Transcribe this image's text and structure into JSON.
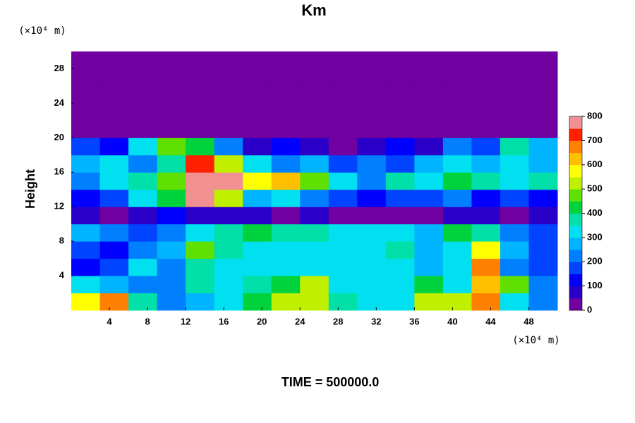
{
  "chart_data": {
    "type": "heatmap",
    "title": "Km",
    "xlabel_unit": "(×10⁴ m)",
    "ylabel_unit": "(×10⁴ m)",
    "ylabel": "Height",
    "footer": "TIME = 500000.0",
    "xlim": [
      0,
      51
    ],
    "ylim": [
      0,
      30
    ],
    "xticks": [
      4,
      8,
      12,
      16,
      20,
      24,
      28,
      32,
      36,
      40,
      44,
      48
    ],
    "yticks": [
      4,
      8,
      12,
      16,
      20,
      24,
      28
    ],
    "xbins": [
      0,
      3,
      6,
      9,
      12,
      15,
      18,
      21,
      24,
      27,
      30,
      33,
      36,
      39,
      42,
      45,
      48,
      51
    ],
    "ybins": [
      0,
      2,
      4,
      6,
      8,
      10,
      12,
      14,
      16,
      18,
      20,
      22,
      24,
      26,
      28,
      30
    ],
    "z": [
      [
        550,
        650,
        350,
        200,
        250,
        300,
        400,
        500,
        500,
        350,
        300,
        300,
        500,
        500,
        650,
        300,
        200
      ],
      [
        300,
        250,
        200,
        200,
        350,
        300,
        350,
        400,
        500,
        300,
        300,
        300,
        400,
        300,
        600,
        450,
        200
      ],
      [
        100,
        150,
        300,
        200,
        350,
        300,
        300,
        300,
        300,
        300,
        300,
        300,
        250,
        300,
        650,
        200,
        150
      ],
      [
        150,
        100,
        200,
        250,
        450,
        350,
        300,
        300,
        300,
        300,
        300,
        350,
        250,
        300,
        550,
        250,
        150
      ],
      [
        250,
        200,
        150,
        200,
        300,
        350,
        400,
        350,
        350,
        300,
        300,
        300,
        250,
        400,
        350,
        200,
        150
      ],
      [
        50,
        0,
        50,
        100,
        50,
        50,
        50,
        0,
        50,
        0,
        0,
        0,
        0,
        50,
        50,
        0,
        50
      ],
      [
        100,
        150,
        300,
        400,
        750,
        500,
        250,
        300,
        200,
        150,
        100,
        150,
        150,
        200,
        100,
        150,
        100
      ],
      [
        200,
        300,
        350,
        450,
        800,
        800,
        550,
        600,
        450,
        300,
        200,
        350,
        300,
        400,
        350,
        300,
        350
      ],
      [
        250,
        300,
        200,
        350,
        700,
        500,
        300,
        200,
        250,
        150,
        200,
        150,
        250,
        300,
        250,
        300,
        250
      ],
      [
        150,
        100,
        300,
        450,
        400,
        200,
        50,
        100,
        50,
        0,
        50,
        100,
        50,
        200,
        150,
        350,
        250
      ],
      [
        0,
        0,
        0,
        0,
        0,
        0,
        0,
        0,
        0,
        0,
        0,
        0,
        0,
        0,
        0,
        0,
        0
      ],
      [
        0,
        0,
        0,
        0,
        0,
        0,
        0,
        0,
        0,
        0,
        0,
        0,
        0,
        0,
        0,
        0,
        0
      ],
      [
        0,
        0,
        0,
        0,
        0,
        0,
        0,
        0,
        0,
        0,
        0,
        0,
        0,
        0,
        0,
        0,
        0
      ],
      [
        0,
        0,
        0,
        0,
        0,
        0,
        0,
        0,
        0,
        0,
        0,
        0,
        0,
        0,
        0,
        0,
        0
      ],
      [
        0,
        0,
        0,
        0,
        0,
        0,
        0,
        0,
        0,
        0,
        0,
        0,
        0,
        0,
        0,
        0,
        0
      ]
    ],
    "colorbar": {
      "lim": [
        0,
        800
      ],
      "step": 50,
      "ticks": [
        0,
        100,
        200,
        300,
        400,
        500,
        600,
        700,
        800
      ],
      "colors": [
        "#7000a0",
        "#2a00c8",
        "#0000ff",
        "#0044ff",
        "#0080ff",
        "#00b4ff",
        "#00e0f0",
        "#00e0a8",
        "#00d23c",
        "#60e000",
        "#c0f000",
        "#ffff00",
        "#ffc000",
        "#ff8000",
        "#ff2000",
        "#f09090"
      ]
    }
  }
}
